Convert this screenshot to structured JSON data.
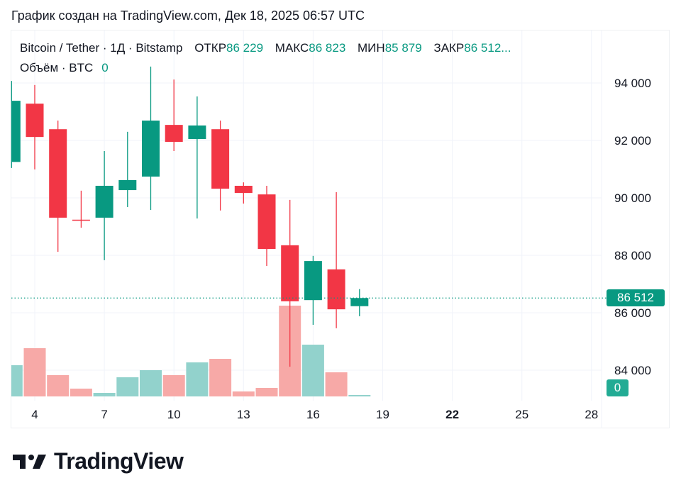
{
  "caption": "График создан на TradingView.com, Дек 18, 2025 06:57 UTC",
  "legend": {
    "symbol": "Bitcoin / Tether · 1Д · Bitstamp",
    "open_label": "ОТКР",
    "open_value": "86 229",
    "high_label": "МАКС",
    "high_value": "86 823",
    "low_label": "МИН",
    "low_value": "85 879",
    "close_label": "ЗАКР",
    "close_value": "86 512...",
    "volume_label": "Объём · BTC",
    "volume_value": "0"
  },
  "price_badge": "86 512",
  "volume_badge": "0",
  "logo_text": "TradingView",
  "colors": {
    "up": "#089981",
    "down": "#f23645",
    "up_vol": "#92d2cc",
    "down_vol": "#f7a9a7",
    "grid": "#f0f3fa"
  },
  "chart_data": {
    "type": "candlestick",
    "title": "Bitcoin / Tether · 1Д · Bitstamp",
    "xlabel": "",
    "ylabel": "",
    "ylim": [
      83000,
      95000
    ],
    "y_ticks": [
      "94 000",
      "92 000",
      "90 000",
      "88 000",
      "86 000",
      "84 000"
    ],
    "x_ticks": [
      "4",
      "7",
      "10",
      "13",
      "16",
      "19",
      "22",
      "25",
      "28"
    ],
    "x_ticks_bold": [
      "22"
    ],
    "grid": true,
    "last_price": 86512,
    "categories": [
      "3",
      "4",
      "5",
      "6",
      "7",
      "8",
      "9",
      "10",
      "11",
      "12",
      "13",
      "14",
      "15",
      "16",
      "17",
      "18"
    ],
    "open": [
      91250,
      93280,
      92390,
      89240,
      89310,
      90270,
      90740,
      92540,
      92050,
      92390,
      90420,
      90120,
      88350,
      86440,
      87510,
      86229
    ],
    "high": [
      94070,
      93930,
      92690,
      90250,
      91630,
      92300,
      94570,
      94120,
      93530,
      92690,
      90540,
      90420,
      89930,
      87980,
      90200,
      86823
    ],
    "low": [
      91040,
      90990,
      88120,
      88960,
      87830,
      89680,
      89580,
      91630,
      89280,
      89560,
      89800,
      87630,
      84120,
      85580,
      85460,
      85879
    ],
    "close": [
      93380,
      92120,
      89310,
      89210,
      90420,
      90620,
      92690,
      91950,
      92520,
      90320,
      90170,
      88220,
      86400,
      87800,
      86120,
      86512
    ],
    "volume_rel": [
      44,
      68,
      30,
      11,
      5,
      27,
      37,
      30,
      48,
      53,
      7,
      12,
      128,
      73,
      34,
      2
    ],
    "series": [
      {
        "name": "Объём · BTC",
        "last": "0"
      }
    ]
  }
}
